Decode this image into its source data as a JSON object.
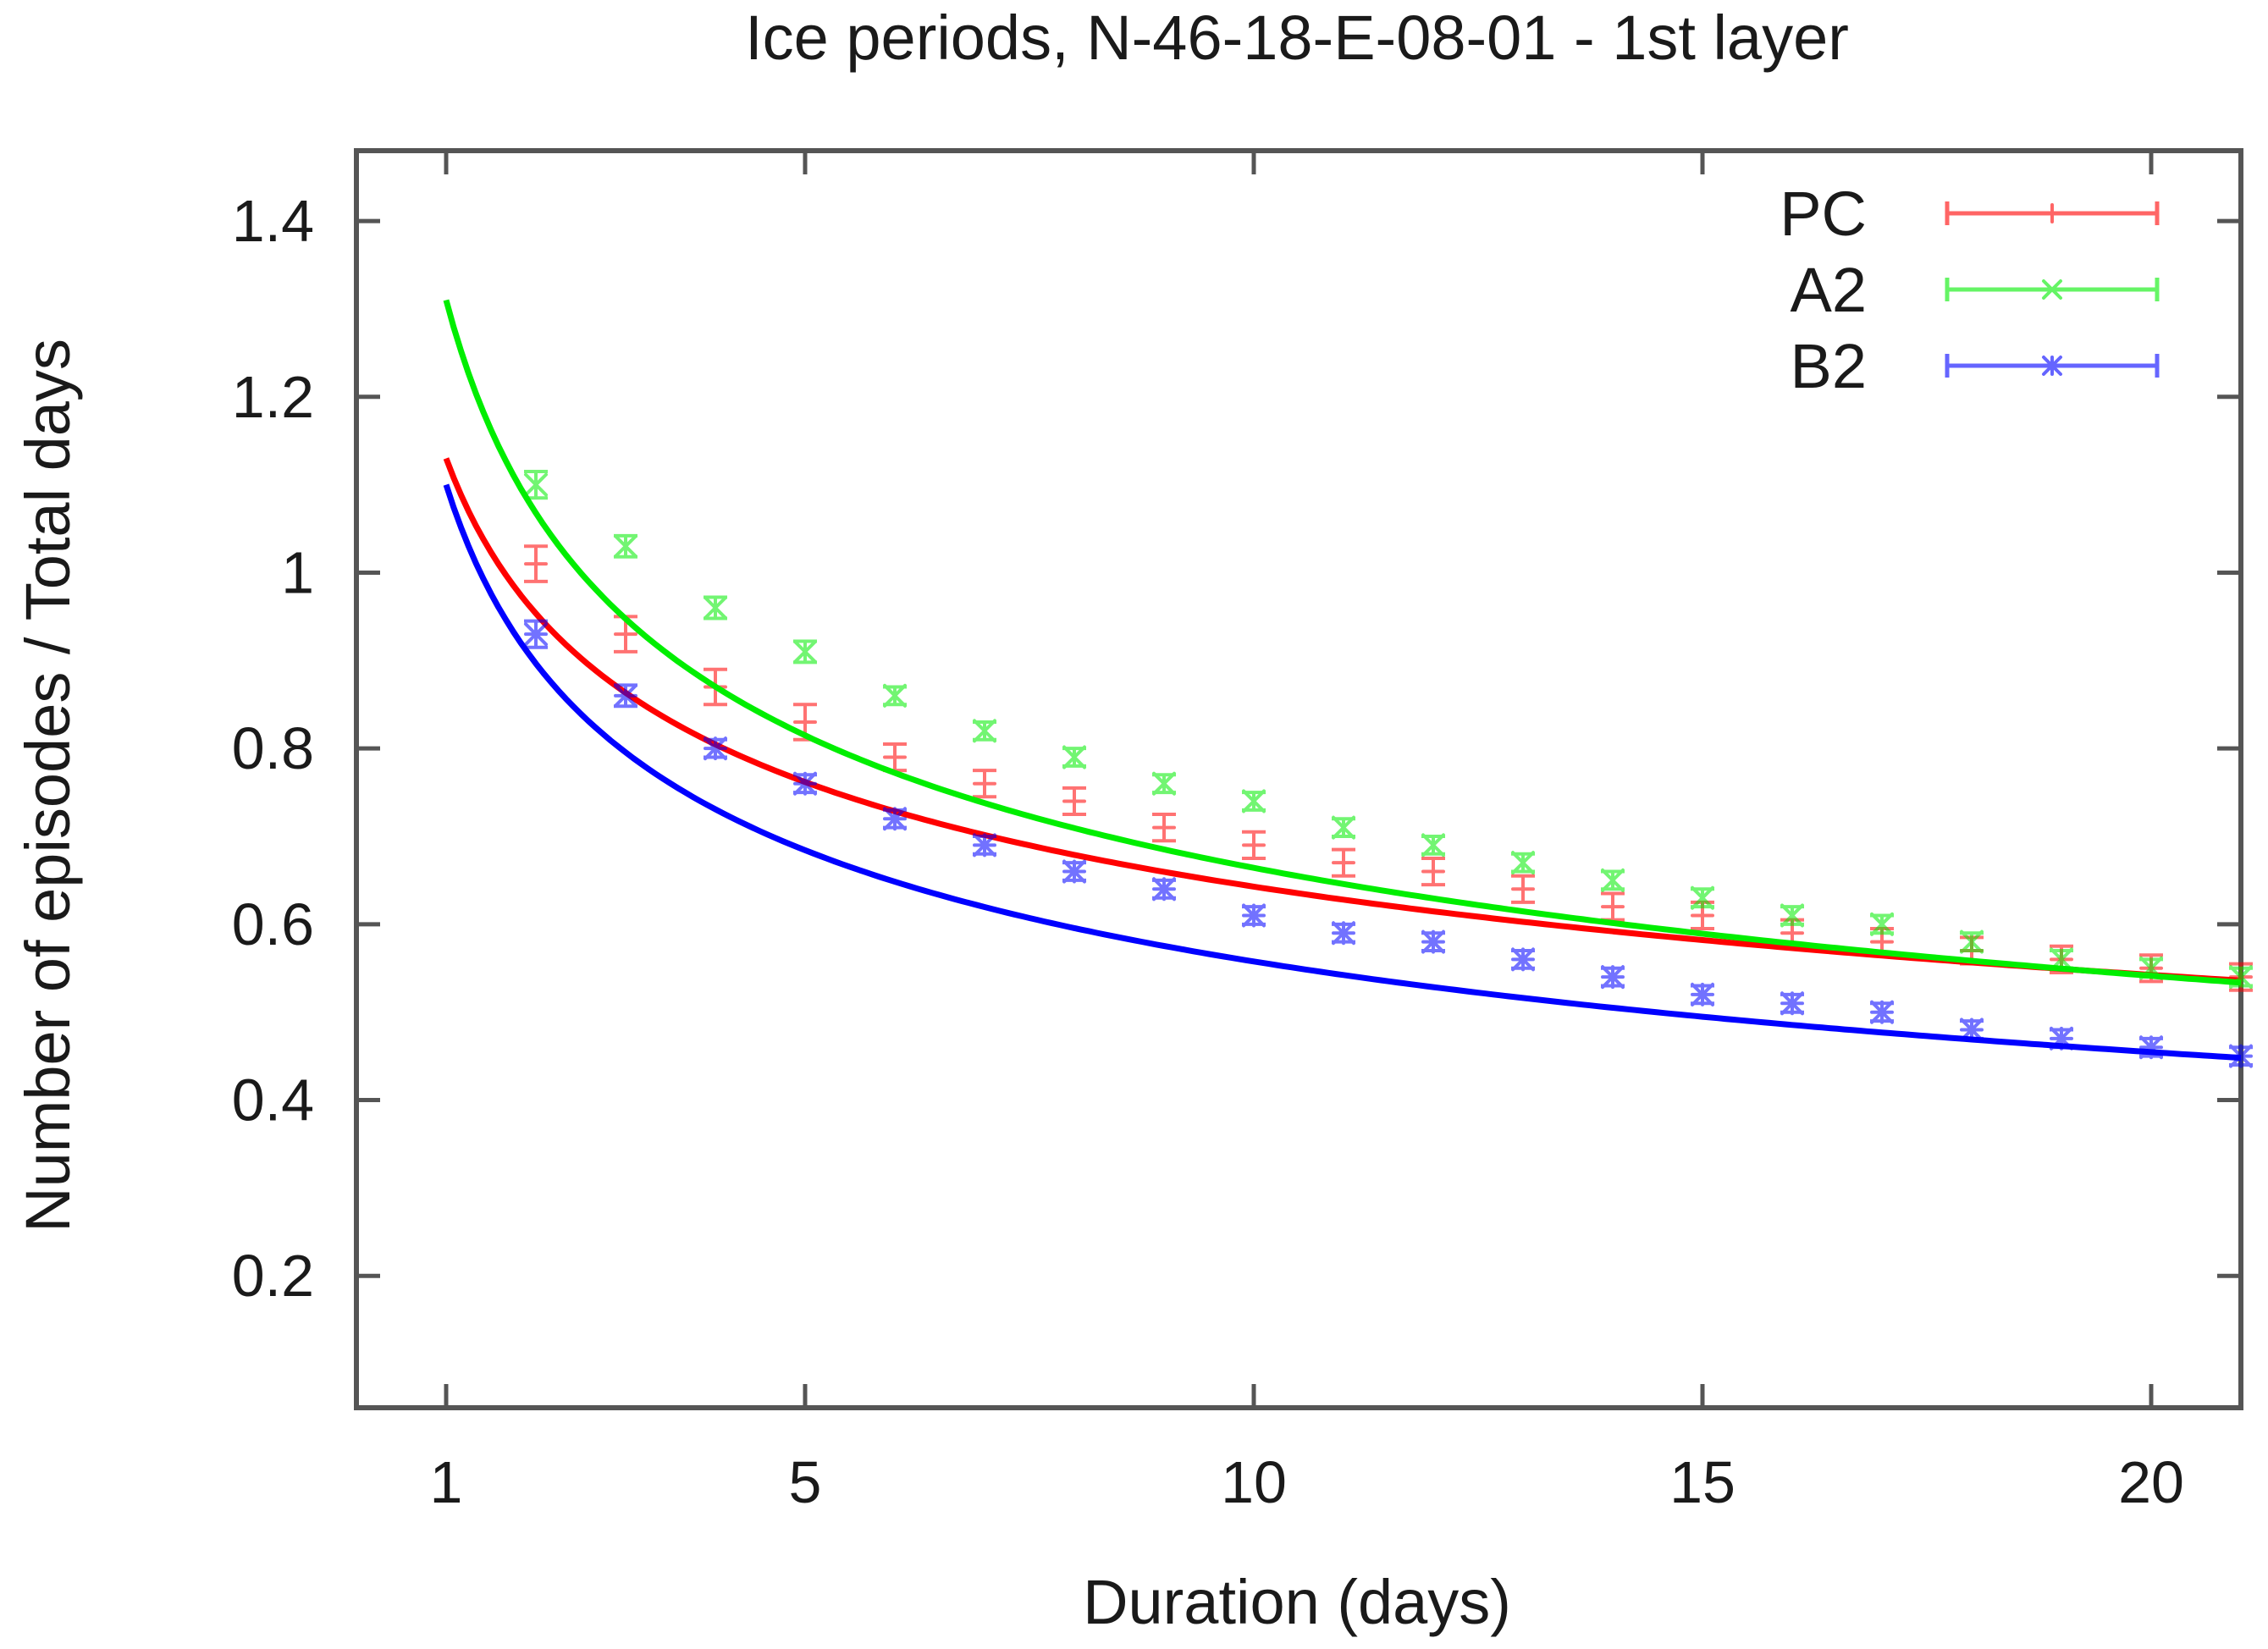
{
  "chart_data": {
    "type": "line",
    "title": "Ice periods, N-46-18-E-08-01 - 1st layer",
    "xlabel": "Duration (days)",
    "ylabel": "Number of episodes / Total days",
    "xlim": [
      0,
      21
    ],
    "ylim": [
      0.05,
      1.48
    ],
    "xticks": [
      1,
      5,
      10,
      15,
      20
    ],
    "xtick_labels": [
      "1",
      "5",
      "10",
      "15",
      "20"
    ],
    "yticks": [
      0.2,
      0.4,
      0.6,
      0.8,
      1.0,
      1.2,
      1.4
    ],
    "ytick_labels": [
      "0.2",
      "0.4",
      "0.6",
      "0.8",
      "1",
      "1.2",
      "1.4"
    ],
    "grid": false,
    "legend_position": "top-right",
    "x": [
      2,
      3,
      4,
      5,
      6,
      7,
      8,
      9,
      10,
      11,
      12,
      13,
      14,
      15,
      16,
      17,
      18,
      19,
      20,
      21
    ],
    "series": [
      {
        "name": "PC",
        "color": "#ff0000",
        "marker": "plus",
        "fit_curve": {
          "a": 1.13,
          "b": 0.245,
          "x_start": 1
        },
        "values": [
          1.01,
          0.93,
          0.87,
          0.83,
          0.79,
          0.76,
          0.74,
          0.71,
          0.69,
          0.67,
          0.66,
          0.64,
          0.62,
          0.61,
          0.59,
          0.58,
          0.57,
          0.56,
          0.55,
          0.54
        ],
        "errors": [
          0.02,
          0.02,
          0.02,
          0.02,
          0.015,
          0.015,
          0.015,
          0.015,
          0.015,
          0.015,
          0.015,
          0.015,
          0.015,
          0.015,
          0.015,
          0.015,
          0.015,
          0.015,
          0.015,
          0.015
        ]
      },
      {
        "name": "A2",
        "color": "#00ee00",
        "marker": "cross",
        "fit_curve": {
          "a": 1.31,
          "b": 0.295,
          "x_start": 1
        },
        "values": [
          1.1,
          1.03,
          0.96,
          0.91,
          0.86,
          0.82,
          0.79,
          0.76,
          0.74,
          0.71,
          0.69,
          0.67,
          0.65,
          0.63,
          0.61,
          0.6,
          0.58,
          0.56,
          0.55,
          0.54
        ],
        "errors": [
          0.015,
          0.012,
          0.012,
          0.012,
          0.01,
          0.01,
          0.01,
          0.01,
          0.01,
          0.01,
          0.01,
          0.01,
          0.01,
          0.01,
          0.01,
          0.01,
          0.01,
          0.01,
          0.01,
          0.01
        ]
      },
      {
        "name": "B2",
        "color": "#0000ff",
        "marker": "star",
        "fit_curve": {
          "a": 1.1,
          "b": 0.295,
          "x_start": 1
        },
        "values": [
          0.93,
          0.86,
          0.8,
          0.76,
          0.72,
          0.69,
          0.66,
          0.64,
          0.61,
          0.59,
          0.58,
          0.56,
          0.54,
          0.52,
          0.51,
          0.5,
          0.48,
          0.47,
          0.46,
          0.45
        ],
        "errors": [
          0.015,
          0.012,
          0.01,
          0.01,
          0.01,
          0.01,
          0.01,
          0.01,
          0.01,
          0.01,
          0.01,
          0.01,
          0.01,
          0.01,
          0.01,
          0.01,
          0.01,
          0.01,
          0.01,
          0.01
        ]
      }
    ]
  }
}
